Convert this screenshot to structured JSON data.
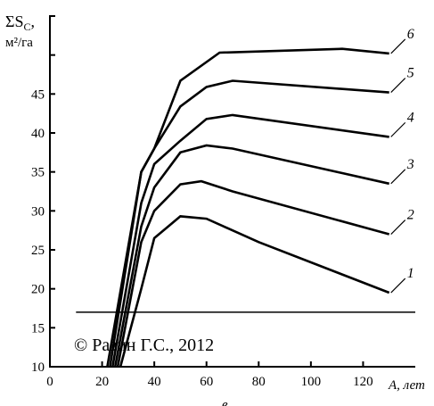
{
  "chart_data": {
    "type": "line",
    "ylabel_symbol": "ΣS",
    "ylabel_sub": "C",
    "ylabel_suffix": ",",
    "ylabel_units": "м²/га",
    "xlabel": "A, лет",
    "caption_letter": "в",
    "xlim": [
      0,
      140
    ],
    "ylim": [
      10,
      55
    ],
    "x_ticks": [
      0,
      20,
      40,
      60,
      80,
      100,
      120
    ],
    "y_ticks": [
      10,
      15,
      20,
      25,
      30,
      35,
      40,
      45
    ],
    "series": [
      {
        "name": "1",
        "x": [
          27,
          35,
          40,
          50,
          60,
          80,
          130
        ],
        "y": [
          10,
          20,
          26.5,
          29.3,
          29,
          26,
          19.5
        ]
      },
      {
        "name": "2",
        "x": [
          26,
          35,
          40,
          50,
          58,
          70,
          130
        ],
        "y": [
          10,
          26,
          30,
          33.4,
          33.8,
          32.5,
          27
        ]
      },
      {
        "name": "3",
        "x": [
          25,
          35,
          40,
          50,
          60,
          70,
          130
        ],
        "y": [
          10,
          28,
          33,
          37.5,
          38.4,
          38,
          33.5
        ]
      },
      {
        "name": "4",
        "x": [
          24,
          35,
          40,
          50,
          60,
          70,
          130
        ],
        "y": [
          10,
          31,
          36,
          39,
          41.8,
          42.3,
          39.5
        ]
      },
      {
        "name": "5",
        "x": [
          23,
          35,
          40,
          50,
          60,
          70,
          130
        ],
        "y": [
          10,
          35,
          38,
          43.4,
          45.9,
          46.7,
          45.2
        ]
      },
      {
        "name": "6",
        "x": [
          22,
          35,
          40,
          50,
          65,
          112,
          130
        ],
        "y": [
          10,
          35,
          38,
          46.7,
          50.3,
          50.8,
          50.2
        ]
      }
    ],
    "hline_y": 17,
    "hline_x": [
      10,
      140
    ],
    "copyright": "© Разин Г.С., 2012"
  }
}
